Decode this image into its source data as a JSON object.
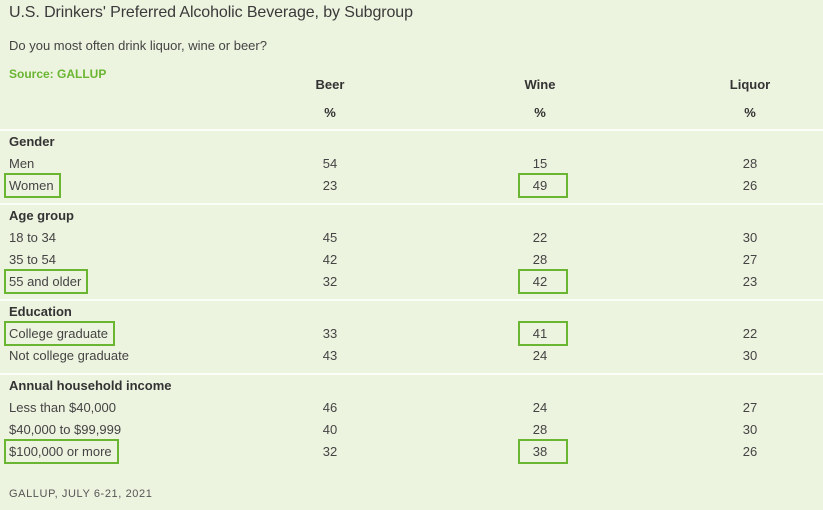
{
  "title": "U.S. Drinkers' Preferred Alcoholic Beverage, by Subgroup",
  "subtitle": "Do you most often drink liquor, wine or beer?",
  "source": "Source: GALLUP",
  "columns": [
    {
      "label": "Beer",
      "unit": "%"
    },
    {
      "label": "Wine",
      "unit": "%"
    },
    {
      "label": "Liquor",
      "unit": "%"
    }
  ],
  "footer": "GALLUP, JULY 6-21, 2021",
  "highlight_color": "#6ab531",
  "background_color": "#ecf3df",
  "chart_data": {
    "type": "table",
    "title": "U.S. Drinkers' Preferred Alcoholic Beverage, by Subgroup",
    "subtitle": "Do you most often drink liquor, wine or beer?",
    "columns": [
      "Beer",
      "Wine",
      "Liquor"
    ],
    "unit": "%",
    "groups": [
      {
        "name": "Gender",
        "rows": [
          {
            "label": "Men",
            "values": [
              54,
              15,
              28
            ],
            "highlighted": false
          },
          {
            "label": "Women",
            "values": [
              23,
              49,
              26
            ],
            "highlighted": true
          }
        ]
      },
      {
        "name": "Age group",
        "rows": [
          {
            "label": "18 to 34",
            "values": [
              45,
              22,
              30
            ],
            "highlighted": false
          },
          {
            "label": "35 to 54",
            "values": [
              42,
              28,
              27
            ],
            "highlighted": false
          },
          {
            "label": "55 and older",
            "values": [
              32,
              42,
              23
            ],
            "highlighted": true
          }
        ]
      },
      {
        "name": "Education",
        "rows": [
          {
            "label": "College graduate",
            "values": [
              33,
              41,
              22
            ],
            "highlighted": true
          },
          {
            "label": "Not college graduate",
            "values": [
              43,
              24,
              30
            ],
            "highlighted": false
          }
        ]
      },
      {
        "name": "Annual household income",
        "rows": [
          {
            "label": "Less than $40,000",
            "values": [
              46,
              24,
              27
            ],
            "highlighted": false
          },
          {
            "label": "$40,000 to $99,999",
            "values": [
              40,
              28,
              30
            ],
            "highlighted": false
          },
          {
            "label": "$100,000 or more",
            "values": [
              32,
              38,
              26
            ],
            "highlighted": true
          }
        ]
      }
    ]
  }
}
